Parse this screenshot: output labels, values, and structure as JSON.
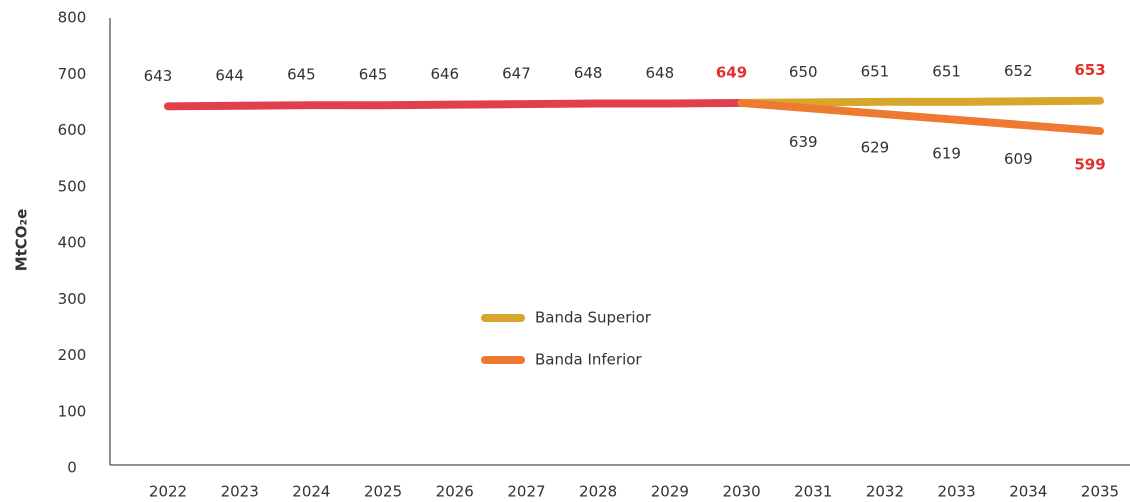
{
  "chart_data": {
    "type": "line",
    "y_label": "MtCO₂e",
    "categories": [
      "2022",
      "2023",
      "2024",
      "2025",
      "2026",
      "2027",
      "2028",
      "2029",
      "2030",
      "2031",
      "2032",
      "2033",
      "2034",
      "2035"
    ],
    "series": [
      {
        "color": "#e0404a",
        "label_position": "above",
        "values": [
          643,
          644,
          645,
          645,
          646,
          647,
          648,
          648,
          649,
          null,
          null,
          null,
          null,
          null
        ]
      },
      {
        "name": "Banda Superior",
        "color": "#d8a62c",
        "label_position": "above",
        "values": [
          null,
          null,
          null,
          null,
          null,
          null,
          null,
          null,
          649,
          650,
          651,
          651,
          652,
          653
        ]
      },
      {
        "name": "Banda Inferior",
        "color": "#ee7a32",
        "label_position": "below",
        "values": [
          null,
          null,
          null,
          null,
          null,
          null,
          null,
          null,
          649,
          639,
          629,
          619,
          609,
          599
        ]
      }
    ],
    "highlight_color": "#e3302c",
    "ylim": [
      0,
      800
    ],
    "yticks": [
      0,
      100,
      200,
      300,
      400,
      500,
      600,
      700,
      800
    ],
    "grid": false
  }
}
